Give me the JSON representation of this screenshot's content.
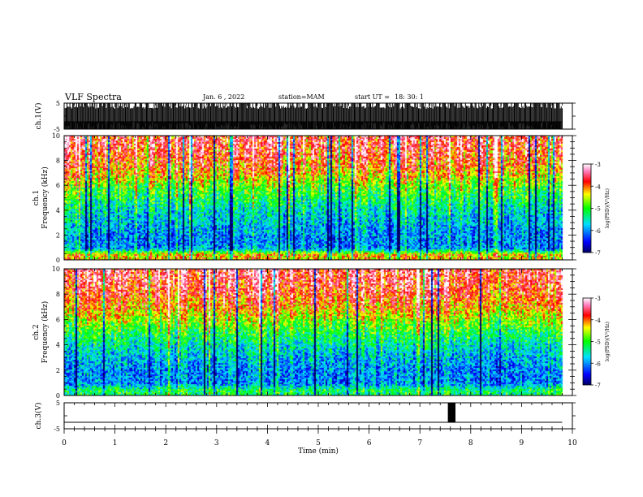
{
  "header": {
    "title": "VLF Spectra",
    "date": "Jan. 6 , 2022",
    "station": "station=MAM",
    "start_label": "start UT =",
    "start_time": "18: 30: 1"
  },
  "panels": {
    "ch1_waveform": {
      "ylabel": "ch.1(V)",
      "yticks": [
        "5",
        "-5"
      ]
    },
    "ch1_spectrogram": {
      "ylabel_top": "ch.1",
      "ylabel_bottom": "Frequency (kHz)",
      "yticks": [
        "0",
        "2",
        "4",
        "6",
        "8",
        "10"
      ],
      "colorbar_label": "log(PSD)(V²/Hz)",
      "colorbar_ticks": [
        "-3",
        "-4",
        "-5",
        "-6",
        "-7"
      ]
    },
    "ch2_spectrogram": {
      "ylabel_top": "ch.2",
      "ylabel_bottom": "Frequency (kHz)",
      "yticks": [
        "0",
        "2",
        "4",
        "6",
        "8",
        "10"
      ],
      "colorbar_label": "log(PSD)(V²/Hz)",
      "colorbar_ticks": [
        "-3",
        "-4",
        "-5",
        "-6",
        "-7"
      ]
    },
    "ch3_waveform": {
      "ylabel": "ch.3(V)",
      "yticks": [
        "5",
        "-5"
      ]
    }
  },
  "x_axis": {
    "label": "Time (min)",
    "ticks": [
      "0",
      "1",
      "2",
      "3",
      "4",
      "5",
      "6",
      "7",
      "8",
      "9",
      "10"
    ]
  },
  "chart_data": [
    {
      "type": "line",
      "title": "",
      "ylabel": "ch.1(V)",
      "xlim": [
        0,
        10
      ],
      "ylim": [
        -5,
        5
      ],
      "data_end_x": 9.8,
      "description_values": {
        "envelope_max": 5,
        "envelope_min": -5,
        "baseline": -2
      }
    },
    {
      "type": "heatmap",
      "ylabel": "ch.1 Frequency (kHz)",
      "xlim": [
        0,
        10
      ],
      "ylim": [
        0,
        10
      ],
      "data_end_x": 9.8,
      "zlabel": "log(PSD)(V²/Hz)",
      "zlim": [
        -7,
        -3
      ],
      "colormap": [
        "#000080",
        "#0000ff",
        "#00ffff",
        "#00ff00",
        "#ffff00",
        "#ff0000",
        "#ff80c0",
        "#ffffff"
      ],
      "mean_log_psd_by_freq": [
        {
          "f": 0.5,
          "v": -4.3
        },
        {
          "f": 1.0,
          "v": -6.0
        },
        {
          "f": 2.0,
          "v": -6.0
        },
        {
          "f": 3.0,
          "v": -5.8
        },
        {
          "f": 4.0,
          "v": -5.6
        },
        {
          "f": 5.0,
          "v": -5.2
        },
        {
          "f": 6.0,
          "v": -4.8
        },
        {
          "f": 7.0,
          "v": -4.2
        },
        {
          "f": 8.0,
          "v": -3.9
        },
        {
          "f": 9.0,
          "v": -3.7
        },
        {
          "f": 10.0,
          "v": -3.6
        }
      ]
    },
    {
      "type": "heatmap",
      "ylabel": "ch.2 Frequency (kHz)",
      "xlim": [
        0,
        10
      ],
      "ylim": [
        0,
        10
      ],
      "data_end_x": 9.8,
      "zlabel": "log(PSD)(V²/Hz)",
      "zlim": [
        -7,
        -3
      ],
      "colormap": [
        "#000080",
        "#0000ff",
        "#00ffff",
        "#00ff00",
        "#ffff00",
        "#ff0000",
        "#ff80c0",
        "#ffffff"
      ],
      "mean_log_psd_by_freq": [
        {
          "f": 0.5,
          "v": -5.2
        },
        {
          "f": 1.0,
          "v": -6.0
        },
        {
          "f": 2.0,
          "v": -6.0
        },
        {
          "f": 3.0,
          "v": -5.8
        },
        {
          "f": 4.0,
          "v": -5.5
        },
        {
          "f": 5.0,
          "v": -5.1
        },
        {
          "f": 6.0,
          "v": -4.6
        },
        {
          "f": 7.0,
          "v": -4.1
        },
        {
          "f": 8.0,
          "v": -3.8
        },
        {
          "f": 9.0,
          "v": -3.6
        },
        {
          "f": 10.0,
          "v": -3.5
        }
      ]
    },
    {
      "type": "line",
      "ylabel": "ch.3(V)",
      "xlim": [
        0,
        10
      ],
      "ylim": [
        -5,
        5
      ],
      "data_end_x": 9.8,
      "description_values": {
        "baseline": -2.5,
        "pulse_start": 7.55,
        "pulse_end": 7.7,
        "pulse_level": 5
      }
    }
  ]
}
